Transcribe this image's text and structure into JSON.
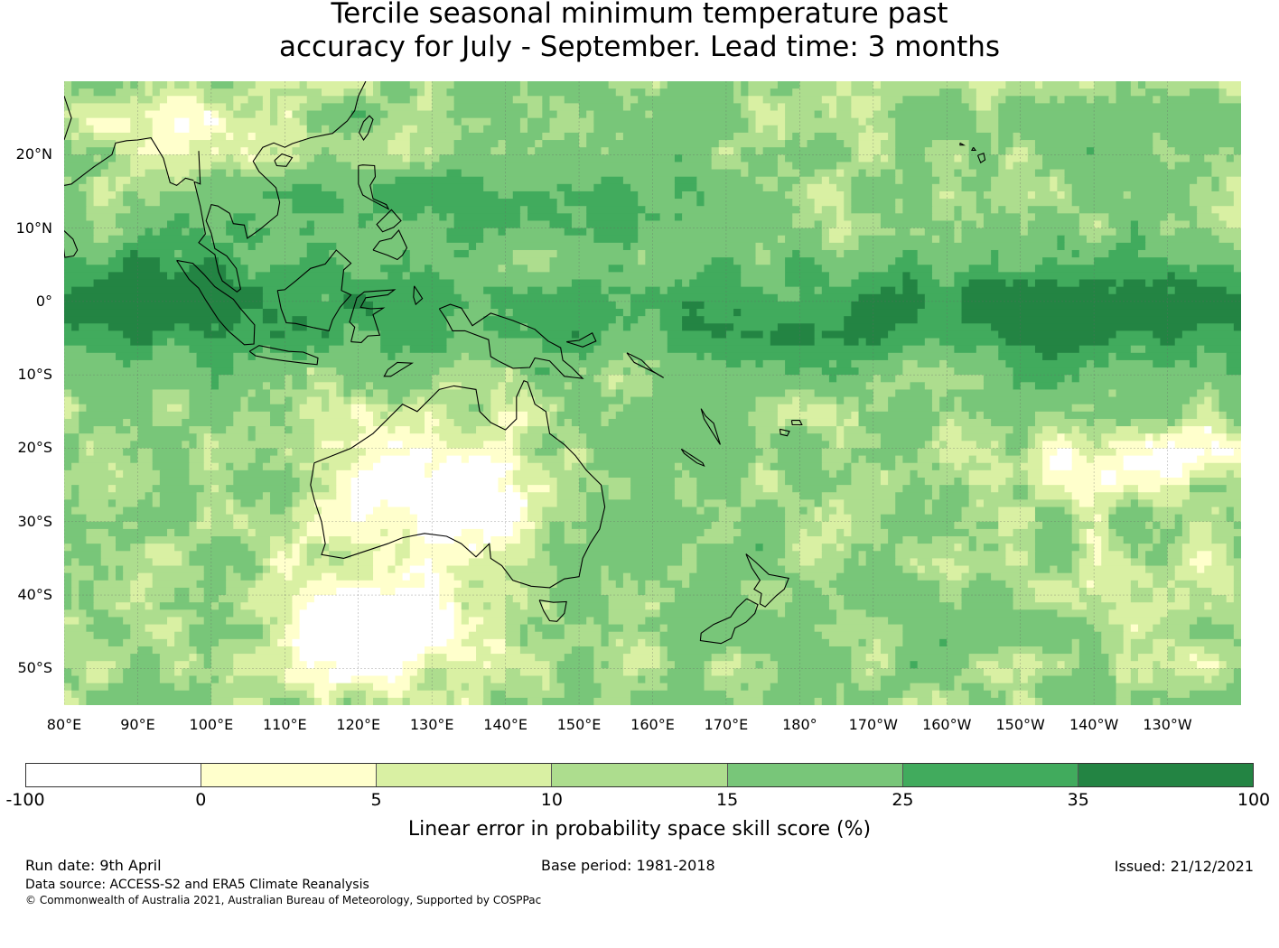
{
  "title": {
    "line1": "Tercile seasonal minimum temperature past",
    "line2": "accuracy for July - September. Lead time: 3 months"
  },
  "map": {
    "lat_labels": [
      "20°N",
      "10°N",
      "0°",
      "10°S",
      "20°S",
      "30°S",
      "40°S",
      "50°S"
    ],
    "lon_labels": [
      "80°E",
      "90°E",
      "100°E",
      "110°E",
      "120°E",
      "130°E",
      "140°E",
      "150°E",
      "160°E",
      "170°E",
      "180°",
      "170°W",
      "160°W",
      "150°W",
      "140°W",
      "130°W"
    ],
    "extent": {
      "lon_min": 80,
      "lon_max": 240,
      "lat_min": -55,
      "lat_max": 30
    },
    "coastline_color": "#000000",
    "gridline_color": "#666666"
  },
  "colorbar": {
    "label": "Linear error in probability space skill score (%)",
    "ticks": [
      "-100",
      "0",
      "5",
      "10",
      "15",
      "25",
      "35",
      "100"
    ],
    "bins": [
      {
        "range": [
          -100,
          0
        ],
        "color": "#ffffff"
      },
      {
        "range": [
          0,
          5
        ],
        "color": "#ffffcc"
      },
      {
        "range": [
          5,
          10
        ],
        "color": "#d9f0a3"
      },
      {
        "range": [
          10,
          15
        ],
        "color": "#addd8e"
      },
      {
        "range": [
          15,
          25
        ],
        "color": "#78c679"
      },
      {
        "range": [
          25,
          35
        ],
        "color": "#41ab5d"
      },
      {
        "range": [
          35,
          100
        ],
        "color": "#238443"
      }
    ]
  },
  "footer": {
    "run_date": "Run date: 9th April",
    "base_period": "Base period: 1981-2018",
    "issued": "Issued: 21/12/2021",
    "data_source": "Data source: ACCESS-S2 and ERA5 Climate Reanalysis",
    "copyright": "© Commonwealth of Australia 2021, Australian Bureau of Meteorology, Supported by COSPPac"
  }
}
